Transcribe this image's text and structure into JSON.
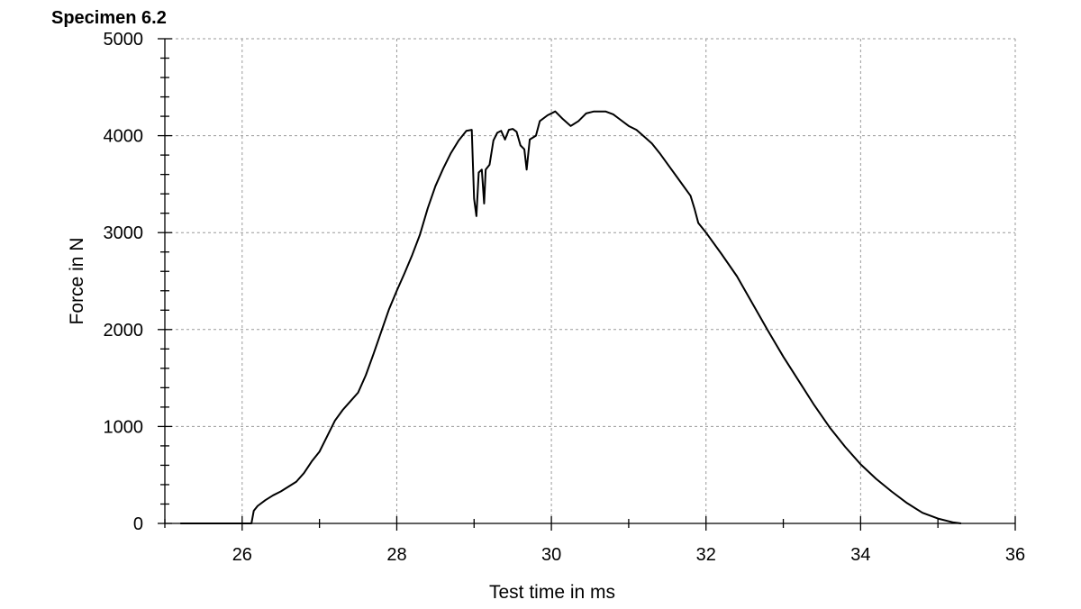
{
  "chart_data": {
    "type": "line",
    "title": "Specimen 6.2",
    "xlabel": "Test time in ms",
    "ylabel": "Force in N",
    "xlim": [
      25,
      36
    ],
    "ylim": [
      0,
      5000
    ],
    "x_ticks": [
      26,
      28,
      30,
      32,
      34,
      36
    ],
    "y_ticks": [
      0,
      1000,
      2000,
      3000,
      4000,
      5000
    ],
    "grid": true,
    "series": [
      {
        "color": "#000000",
        "points": [
          [
            25.2,
            0
          ],
          [
            26.1,
            0
          ],
          [
            26.12,
            0
          ],
          [
            26.15,
            130
          ],
          [
            26.2,
            180
          ],
          [
            26.3,
            240
          ],
          [
            26.4,
            290
          ],
          [
            26.5,
            330
          ],
          [
            26.6,
            380
          ],
          [
            26.7,
            430
          ],
          [
            26.8,
            520
          ],
          [
            26.9,
            640
          ],
          [
            27.0,
            740
          ],
          [
            27.1,
            900
          ],
          [
            27.2,
            1060
          ],
          [
            27.3,
            1170
          ],
          [
            27.4,
            1260
          ],
          [
            27.5,
            1350
          ],
          [
            27.6,
            1530
          ],
          [
            27.7,
            1750
          ],
          [
            27.8,
            1980
          ],
          [
            27.9,
            2210
          ],
          [
            28.0,
            2400
          ],
          [
            28.1,
            2580
          ],
          [
            28.2,
            2770
          ],
          [
            28.3,
            2980
          ],
          [
            28.4,
            3250
          ],
          [
            28.5,
            3480
          ],
          [
            28.6,
            3660
          ],
          [
            28.7,
            3820
          ],
          [
            28.8,
            3950
          ],
          [
            28.9,
            4050
          ],
          [
            28.97,
            4060
          ],
          [
            29.0,
            3350
          ],
          [
            29.03,
            3170
          ],
          [
            29.06,
            3620
          ],
          [
            29.1,
            3650
          ],
          [
            29.13,
            3300
          ],
          [
            29.15,
            3650
          ],
          [
            29.2,
            3700
          ],
          [
            29.25,
            3950
          ],
          [
            29.3,
            4030
          ],
          [
            29.35,
            4050
          ],
          [
            29.4,
            3960
          ],
          [
            29.45,
            4060
          ],
          [
            29.5,
            4070
          ],
          [
            29.55,
            4040
          ],
          [
            29.6,
            3900
          ],
          [
            29.65,
            3860
          ],
          [
            29.68,
            3650
          ],
          [
            29.72,
            3960
          ],
          [
            29.8,
            4000
          ],
          [
            29.85,
            4150
          ],
          [
            29.95,
            4210
          ],
          [
            30.05,
            4250
          ],
          [
            30.15,
            4170
          ],
          [
            30.25,
            4100
          ],
          [
            30.35,
            4150
          ],
          [
            30.45,
            4230
          ],
          [
            30.55,
            4250
          ],
          [
            30.7,
            4250
          ],
          [
            30.8,
            4220
          ],
          [
            30.9,
            4160
          ],
          [
            31.0,
            4100
          ],
          [
            31.1,
            4060
          ],
          [
            31.2,
            3990
          ],
          [
            31.3,
            3920
          ],
          [
            31.4,
            3820
          ],
          [
            31.5,
            3710
          ],
          [
            31.6,
            3600
          ],
          [
            31.7,
            3490
          ],
          [
            31.8,
            3380
          ],
          [
            31.85,
            3250
          ],
          [
            31.9,
            3100
          ],
          [
            32.0,
            3000
          ],
          [
            32.2,
            2780
          ],
          [
            32.4,
            2550
          ],
          [
            32.6,
            2270
          ],
          [
            32.8,
            1990
          ],
          [
            33.0,
            1720
          ],
          [
            33.2,
            1470
          ],
          [
            33.4,
            1220
          ],
          [
            33.6,
            990
          ],
          [
            33.8,
            790
          ],
          [
            34.0,
            610
          ],
          [
            34.2,
            460
          ],
          [
            34.4,
            330
          ],
          [
            34.6,
            210
          ],
          [
            34.8,
            110
          ],
          [
            35.0,
            50
          ],
          [
            35.2,
            10
          ],
          [
            35.3,
            0
          ]
        ]
      }
    ]
  }
}
